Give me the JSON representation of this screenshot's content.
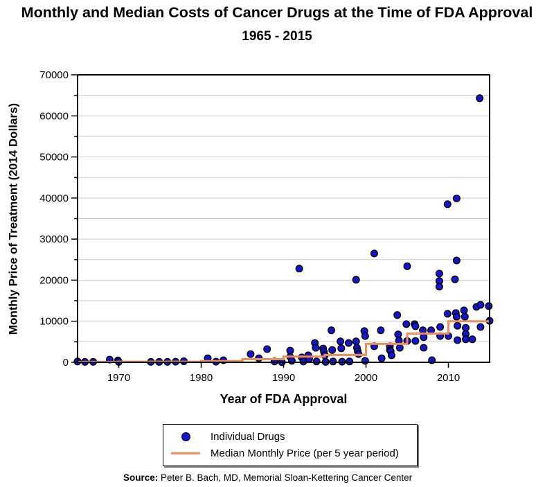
{
  "chart_data": {
    "type": "scatter",
    "title": "Monthly and Median Costs of Cancer Drugs at the Time of FDA Approval",
    "subtitle": "1965 - 2015",
    "xlabel": "Year of FDA Approval",
    "ylabel": "Monthly Price of Treatment (2014 Dollars)",
    "xlim": [
      1965,
      2015
    ],
    "ylim": [
      0,
      70000
    ],
    "x_ticks": [
      1970,
      1980,
      1990,
      2000,
      2010
    ],
    "y_ticks": [
      0,
      10000,
      20000,
      30000,
      40000,
      50000,
      60000,
      70000
    ],
    "y_minor_step": 5000,
    "grid": "horizontal light-gray lines every 5000, no vertical gridlines",
    "legend": {
      "position": "boxed, centered below x-axis title",
      "items": [
        {
          "label": "Individual Drugs",
          "marker": "filled-circle"
        },
        {
          "label": "Median Monthly Price (per 5 year period)",
          "marker": "line"
        }
      ]
    },
    "colors": {
      "point_fill": "#1515CE",
      "point_stroke": "#000000",
      "median_line": "#F08C55",
      "grid": "#C9C9C9",
      "frame": "#000000"
    },
    "series": [
      {
        "name": "Individual Drugs",
        "type": "scatter",
        "points": [
          [
            1965.0,
            200
          ],
          [
            1965.9,
            100
          ],
          [
            1966.9,
            100
          ],
          [
            1968.9,
            650
          ],
          [
            1969.9,
            450
          ],
          [
            1970.0,
            100
          ],
          [
            1973.9,
            100
          ],
          [
            1974.9,
            100
          ],
          [
            1975.9,
            100
          ],
          [
            1976.9,
            150
          ],
          [
            1977.9,
            250
          ],
          [
            1980.8,
            1000
          ],
          [
            1981.8,
            150
          ],
          [
            1982.7,
            500
          ],
          [
            1986.0,
            2000
          ],
          [
            1987.0,
            1000
          ],
          [
            1988.0,
            3200
          ],
          [
            1988.9,
            200
          ],
          [
            1989.8,
            50
          ],
          [
            1990.8,
            2850
          ],
          [
            1990.8,
            1350
          ],
          [
            1991.0,
            350
          ],
          [
            1991.9,
            22800
          ],
          [
            1992.2,
            1200
          ],
          [
            1992.4,
            200
          ],
          [
            1993.0,
            1700
          ],
          [
            1993.1,
            850
          ],
          [
            1993.8,
            4700
          ],
          [
            1993.9,
            3550
          ],
          [
            1994.0,
            200
          ],
          [
            1994.8,
            3350
          ],
          [
            1994.9,
            2550
          ],
          [
            1995.0,
            1700
          ],
          [
            1995.1,
            100
          ],
          [
            1995.8,
            7800
          ],
          [
            1995.9,
            3000
          ],
          [
            1996.0,
            200
          ],
          [
            1996.9,
            5100
          ],
          [
            1997.0,
            3400
          ],
          [
            1997.1,
            150
          ],
          [
            1997.9,
            4700
          ],
          [
            1998.0,
            200
          ],
          [
            1998.8,
            20100
          ],
          [
            1998.8,
            5100
          ],
          [
            1998.9,
            3550
          ],
          [
            1999.0,
            2700
          ],
          [
            1999.1,
            2000
          ],
          [
            1999.8,
            7600
          ],
          [
            1999.9,
            6400
          ],
          [
            1999.9,
            350
          ],
          [
            2001.0,
            26500
          ],
          [
            2001.0,
            3900
          ],
          [
            2001.8,
            7800
          ],
          [
            2001.9,
            1000
          ],
          [
            2002.9,
            3900
          ],
          [
            2002.9,
            3000
          ],
          [
            2003.0,
            2700
          ],
          [
            2003.1,
            1700
          ],
          [
            2003.8,
            11500
          ],
          [
            2003.9,
            6800
          ],
          [
            2004.0,
            5300
          ],
          [
            2004.1,
            3550
          ],
          [
            2004.9,
            9300
          ],
          [
            2005.0,
            23400
          ],
          [
            2005.0,
            5200
          ],
          [
            2005.9,
            9300
          ],
          [
            2006.0,
            8800
          ],
          [
            2006.0,
            5200
          ],
          [
            2006.9,
            7800
          ],
          [
            2007.0,
            6100
          ],
          [
            2007.0,
            3550
          ],
          [
            2007.9,
            7800
          ],
          [
            2008.0,
            500
          ],
          [
            2008.9,
            21600
          ],
          [
            2008.9,
            19800
          ],
          [
            2008.9,
            18400
          ],
          [
            2009.0,
            8600
          ],
          [
            2009.0,
            6400
          ],
          [
            2009.9,
            38500
          ],
          [
            2009.9,
            11800
          ],
          [
            2010.0,
            6400
          ],
          [
            2010.8,
            20200
          ],
          [
            2010.9,
            12000
          ],
          [
            2011.0,
            39900
          ],
          [
            2011.0,
            24800
          ],
          [
            2011.0,
            11100
          ],
          [
            2011.1,
            8900
          ],
          [
            2011.1,
            5400
          ],
          [
            2011.9,
            12650
          ],
          [
            2012.0,
            11100
          ],
          [
            2012.1,
            8400
          ],
          [
            2012.1,
            6900
          ],
          [
            2012.1,
            5600
          ],
          [
            2012.9,
            5600
          ],
          [
            2013.4,
            13500
          ],
          [
            2013.8,
            64300
          ],
          [
            2013.9,
            14000
          ],
          [
            2013.9,
            8600
          ],
          [
            2014.9,
            13700
          ],
          [
            2015.0,
            10100
          ]
        ]
      },
      {
        "name": "Median Monthly Price (per 5 year period)",
        "type": "step-line",
        "periods": [
          {
            "start": 1965,
            "end": 1970,
            "value": 100
          },
          {
            "start": 1970,
            "end": 1975,
            "value": 150
          },
          {
            "start": 1975,
            "end": 1980,
            "value": 150
          },
          {
            "start": 1980,
            "end": 1985,
            "value": 300
          },
          {
            "start": 1985,
            "end": 1990,
            "value": 750
          },
          {
            "start": 1990,
            "end": 1995,
            "value": 1400
          },
          {
            "start": 1995,
            "end": 2000,
            "value": 1800
          },
          {
            "start": 2000,
            "end": 2005,
            "value": 4500
          },
          {
            "start": 2005,
            "end": 2010,
            "value": 7000
          },
          {
            "start": 2010,
            "end": 2015,
            "value": 10000
          }
        ]
      }
    ]
  },
  "source": {
    "label": "Source:",
    "text": "Peter B. Bach, MD, Memorial Sloan-Kettering Cancer Center"
  }
}
